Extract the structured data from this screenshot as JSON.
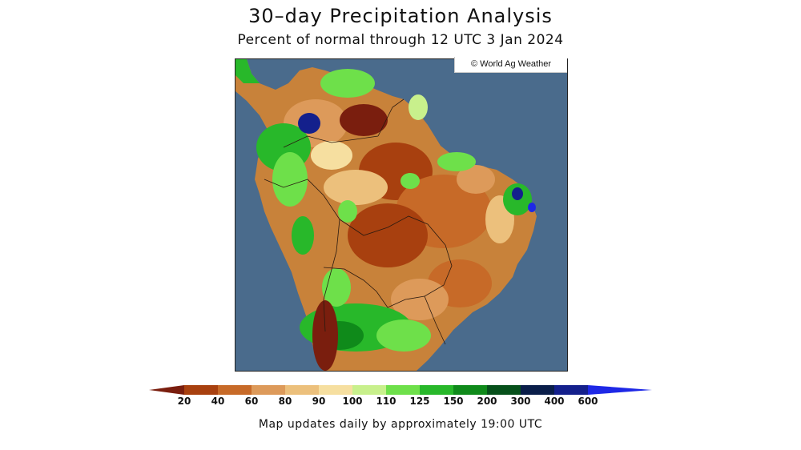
{
  "title": "30–day Precipitation Analysis",
  "subtitle": "Percent of normal through 12 UTC 3 Jan 2024",
  "credit": "© World Ag Weather",
  "footer": "Map updates daily by approximately 19:00 UTC",
  "colors": {
    "ocean": "#4a6b8c",
    "c_below20": "#7a1e0e",
    "c_20_40": "#a8400f",
    "c_40_60": "#c76a28",
    "c_60_80": "#dd9a5a",
    "c_80_90": "#ecc07c",
    "c_90_100": "#f6dfa0",
    "c_100_110": "#c8f08c",
    "c_110_125": "#6ee04a",
    "c_125_150": "#28b82a",
    "c_150_200": "#0f8a1a",
    "c_200_300": "#06501a",
    "c_300_400": "#0a1e4a",
    "c_400_600": "#14208c",
    "c_above600": "#1e28e6"
  },
  "legend": {
    "ticks": [
      "20",
      "40",
      "60",
      "80",
      "90",
      "100",
      "110",
      "125",
      "150",
      "200",
      "300",
      "400",
      "600"
    ]
  }
}
